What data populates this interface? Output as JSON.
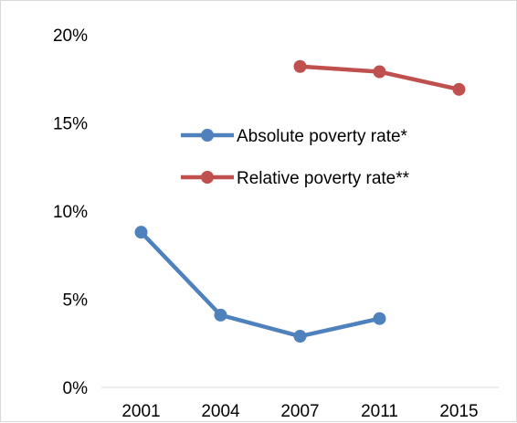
{
  "chart_data": {
    "type": "line",
    "title": "",
    "xlabel": "",
    "ylabel": "",
    "categories": [
      "2001",
      "2004",
      "2007",
      "2011",
      "2015"
    ],
    "ylim": [
      0,
      20
    ],
    "y_ticks": [
      0,
      5,
      10,
      15,
      20
    ],
    "y_tick_labels": [
      "0%",
      "5%",
      "10%",
      "15%",
      "20%"
    ],
    "grid": false,
    "legend_position": "center",
    "series": [
      {
        "name": "Absolute poverty rate*",
        "color": "#4f81bd",
        "marker": "circle",
        "values": [
          8.8,
          4.1,
          2.9,
          3.9,
          null
        ]
      },
      {
        "name": "Relative poverty rate**",
        "color": "#c0504d",
        "marker": "circle",
        "values": [
          null,
          null,
          18.2,
          17.9,
          16.9
        ]
      }
    ]
  }
}
